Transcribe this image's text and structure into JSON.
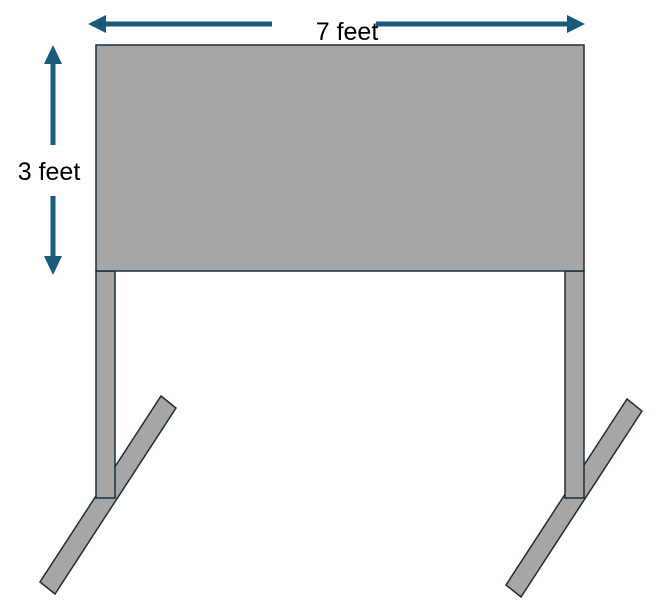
{
  "diagram": {
    "width_label": "7 feet",
    "height_label": "3 feet"
  },
  "colors": {
    "board_fill": "#a6a6a6",
    "outline": "#1c2e3a",
    "arrow": "#1a5a7a",
    "text": "#000000"
  }
}
